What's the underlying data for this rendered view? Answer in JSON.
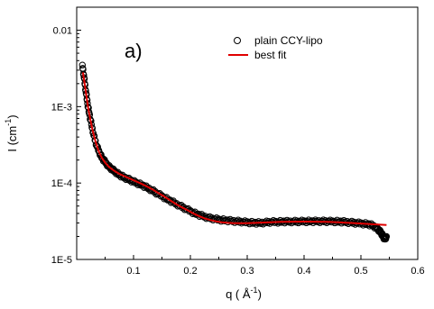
{
  "chart_data": {
    "type": "scatter",
    "panel_label": "a)",
    "xlabel": "q ( Å",
    "xlabel_sup": "-1",
    "xlabel_tail": ")",
    "ylabel": "I (cm",
    "ylabel_sup": "-1",
    "ylabel_tail": ")",
    "xlim": [
      0.0,
      0.6
    ],
    "ylim": [
      1e-05,
      0.02
    ],
    "yscale": "log",
    "x_ticks": [
      {
        "value": 0.1,
        "label": "0.1"
      },
      {
        "value": 0.2,
        "label": "0.2"
      },
      {
        "value": 0.3,
        "label": "0.3"
      },
      {
        "value": 0.4,
        "label": "0.4"
      },
      {
        "value": 0.5,
        "label": "0.5"
      },
      {
        "value": 0.6,
        "label": "0.6"
      }
    ],
    "y_ticks": [
      {
        "value": 0.01,
        "label": "0.01"
      },
      {
        "value": 0.001,
        "label": "1E-3"
      },
      {
        "value": 0.0001,
        "label": "1E-4"
      },
      {
        "value": 1e-05,
        "label": "1E-5"
      }
    ],
    "grid": false,
    "legend_position": "top-right",
    "series": [
      {
        "name": "plain CCY-lipo",
        "kind": "scatter",
        "marker": "open-circle",
        "color": "#000000",
        "x": [
          0.01,
          0.013,
          0.016,
          0.019,
          0.022,
          0.026,
          0.03,
          0.035,
          0.04,
          0.045,
          0.05,
          0.056,
          0.062,
          0.068,
          0.075,
          0.082,
          0.09,
          0.098,
          0.106,
          0.115,
          0.124,
          0.133,
          0.142,
          0.152,
          0.162,
          0.172,
          0.182,
          0.192,
          0.202,
          0.212,
          0.222,
          0.232,
          0.242,
          0.252,
          0.262,
          0.272,
          0.282,
          0.292,
          0.302,
          0.312,
          0.322,
          0.332,
          0.342,
          0.352,
          0.362,
          0.372,
          0.382,
          0.392,
          0.402,
          0.412,
          0.422,
          0.432,
          0.442,
          0.452,
          0.462,
          0.472,
          0.482,
          0.492,
          0.502,
          0.512,
          0.52,
          0.527,
          0.532,
          0.536,
          0.539,
          0.542,
          0.545
        ],
        "y": [
          0.0035,
          0.0024,
          0.0016,
          0.0011,
          0.00082,
          0.00058,
          0.00042,
          0.00031,
          0.00025,
          0.00021,
          0.00019,
          0.000165,
          0.000152,
          0.00014,
          0.000128,
          0.00012,
          0.000113,
          0.000106,
          0.0001,
          9.4e-05,
          8.7e-05,
          8e-05,
          7.3e-05,
          6.6e-05,
          6e-05,
          5.5e-05,
          5e-05,
          4.6e-05,
          4.2e-05,
          3.9e-05,
          3.7e-05,
          3.5e-05,
          3.4e-05,
          3.3e-05,
          3.25e-05,
          3.2e-05,
          3.15e-05,
          3.1e-05,
          3.05e-05,
          3.02e-05,
          3e-05,
          3.05e-05,
          3.1e-05,
          3.1e-05,
          3.12e-05,
          3.13e-05,
          3.13e-05,
          3.14e-05,
          3.15e-05,
          3.15e-05,
          3.16e-05,
          3.16e-05,
          3.15e-05,
          3.14e-05,
          3.13e-05,
          3.1e-05,
          3.05e-05,
          3e-05,
          2.95e-05,
          2.9e-05,
          2.8e-05,
          2.6e-05,
          2.4e-05,
          2.2e-05,
          2e-05,
          1.85e-05,
          2e-05
        ]
      },
      {
        "name": "best fit",
        "kind": "line",
        "color": "#e00000",
        "x": [
          0.011,
          0.014,
          0.017,
          0.02,
          0.024,
          0.028,
          0.033,
          0.038,
          0.044,
          0.05,
          0.057,
          0.065,
          0.075,
          0.085,
          0.095,
          0.105,
          0.115,
          0.125,
          0.135,
          0.145,
          0.155,
          0.165,
          0.175,
          0.185,
          0.195,
          0.205,
          0.215,
          0.225,
          0.235,
          0.245,
          0.255,
          0.265,
          0.275,
          0.285,
          0.3,
          0.32,
          0.34,
          0.36,
          0.38,
          0.4,
          0.42,
          0.44,
          0.46,
          0.48,
          0.5,
          0.52,
          0.545
        ],
        "y": [
          0.0028,
          0.002,
          0.0014,
          0.00098,
          0.00068,
          0.00049,
          0.00035,
          0.00027,
          0.000215,
          0.000185,
          0.000162,
          0.000146,
          0.000132,
          0.000122,
          0.000113,
          0.000105,
          9.7e-05,
          8.9e-05,
          8.1e-05,
          7.3e-05,
          6.6e-05,
          5.9e-05,
          5.3e-05,
          4.8e-05,
          4.4e-05,
          4e-05,
          3.7e-05,
          3.45e-05,
          3.28e-05,
          3.15e-05,
          3.07e-05,
          3.02e-05,
          2.99e-05,
          2.98e-05,
          2.98e-05,
          3.02e-05,
          3.06e-05,
          3.1e-05,
          3.12e-05,
          3.13e-05,
          3.12e-05,
          3.1e-05,
          3.06e-05,
          3.01e-05,
          2.95e-05,
          2.89e-05,
          2.82e-05
        ]
      }
    ]
  }
}
